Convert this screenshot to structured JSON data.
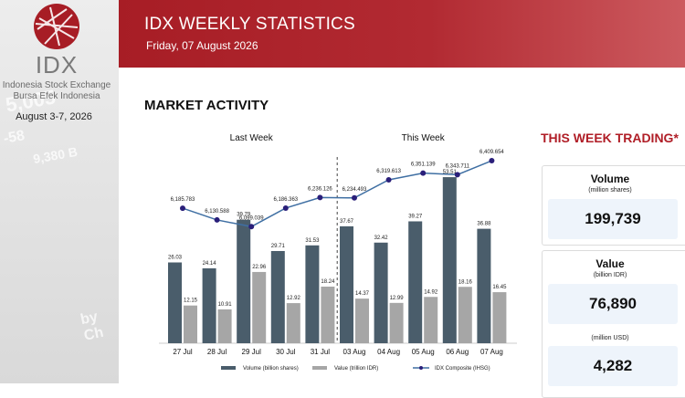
{
  "sidebar": {
    "logo_text": "IDX",
    "logo_line1": "Indonesia Stock Exchange",
    "logo_line2": "Bursa Efek Indonesia",
    "date_range": "August 3-7, 2026",
    "bg_tickers": [
      "5,005",
      "-58",
      "9,380 B",
      "by Ch"
    ]
  },
  "header": {
    "title": "IDX WEEKLY STATISTICS",
    "date": "Friday, 07 August 2026",
    "color": "#a71d25"
  },
  "section_title": "MARKET ACTIVITY",
  "this_week": {
    "title": "THIS WEEK TRADING*",
    "cards": [
      {
        "label": "Volume",
        "unit": "(million shares)",
        "value": "199,739"
      },
      {
        "label": "Value",
        "unit": "(billion IDR)",
        "value": "76,890",
        "extra_unit": "(million USD)",
        "extra_value": "4,282"
      }
    ]
  },
  "chart_data": {
    "type": "bar",
    "group_labels": [
      "Last Week",
      "This Week"
    ],
    "categories": [
      "27 Jul",
      "28 Jul",
      "29 Jul",
      "30 Jul",
      "31 Jul",
      "03 Aug",
      "04 Aug",
      "05 Aug",
      "06 Aug",
      "07 Aug"
    ],
    "series": [
      {
        "name": "Volume (billion shares)",
        "type": "bar",
        "color": "#4a5d6b",
        "values": [
          26.03,
          24.14,
          39.79,
          29.71,
          31.53,
          37.67,
          32.42,
          39.27,
          53.51,
          36.88
        ],
        "labels": [
          "26.03",
          "24.14",
          "39.79",
          "29.71",
          "31.53",
          "37.67",
          "32.42",
          "39.27",
          "53.51",
          "36.88"
        ]
      },
      {
        "name": "Value (trillion IDR)",
        "type": "bar",
        "color": "#a6a6a6",
        "values": [
          12.15,
          10.91,
          22.96,
          12.92,
          18.24,
          14.37,
          12.99,
          14.92,
          18.16,
          16.45
        ],
        "labels": [
          "12.15",
          "10.91",
          "22.96",
          "12.92",
          "18.24",
          "14.37",
          "12.99",
          "14.92",
          "18.16",
          "16.45"
        ]
      },
      {
        "name": "IDX Composite (IHSG)",
        "type": "line",
        "color": "#3f6fa3",
        "values": [
          6185.783,
          6130.588,
          6099.039,
          6186.363,
          6236.126,
          6234.493,
          6319.613,
          6351.139,
          6343.711,
          6409.654
        ],
        "labels": [
          "6,185.783",
          "6,130.588",
          "6,099.039",
          "6,186.363",
          "6,236.126",
          "6,234.493",
          "6,319.613",
          "6,351.139",
          "6,343.711",
          "6,409.654"
        ]
      }
    ],
    "bar_ylim": [
      0,
      65
    ],
    "line_ylim": [
      5550,
      6500
    ],
    "legend_position": "bottom"
  }
}
